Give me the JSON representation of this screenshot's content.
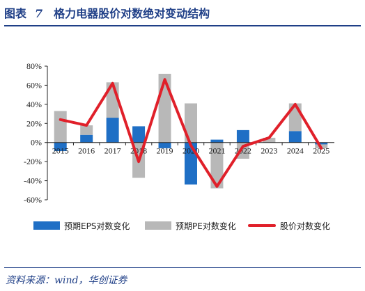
{
  "figure": {
    "label": "图表",
    "number": "7",
    "title": "格力电器股价对数绝对变动结构"
  },
  "source": "资料来源：wind，华创证券",
  "colors": {
    "eps": "#1f6fc5",
    "pe": "#b8b8b8",
    "price": "#e0202a",
    "rule": "#1f3f87"
  },
  "chart_data": {
    "type": "bar",
    "categories": [
      "2015",
      "2016",
      "2017",
      "2018",
      "2019",
      "2020",
      "2021",
      "2022",
      "2023",
      "2024",
      "2025"
    ],
    "series": [
      {
        "name": "预期EPS对数变化",
        "kind": "bar",
        "values": [
          -9,
          8,
          26,
          17,
          -6,
          -44,
          3,
          13,
          0,
          12,
          -2
        ]
      },
      {
        "name": "预期PE对数变化",
        "kind": "bar",
        "values": [
          33,
          10,
          37,
          -37,
          72,
          41,
          -48,
          -17,
          5,
          29,
          -4
        ]
      },
      {
        "name": "股价对数变化",
        "kind": "line",
        "values": [
          24,
          18,
          62,
          -20,
          66,
          -3,
          -46,
          -4,
          5,
          40,
          -6
        ]
      }
    ],
    "yticks": [
      "80%",
      "60%",
      "40%",
      "20%",
      "0%",
      "-20%",
      "-40%",
      "-60%"
    ],
    "ylim": [
      -60,
      80
    ],
    "grid": false,
    "legend": "bottom"
  }
}
